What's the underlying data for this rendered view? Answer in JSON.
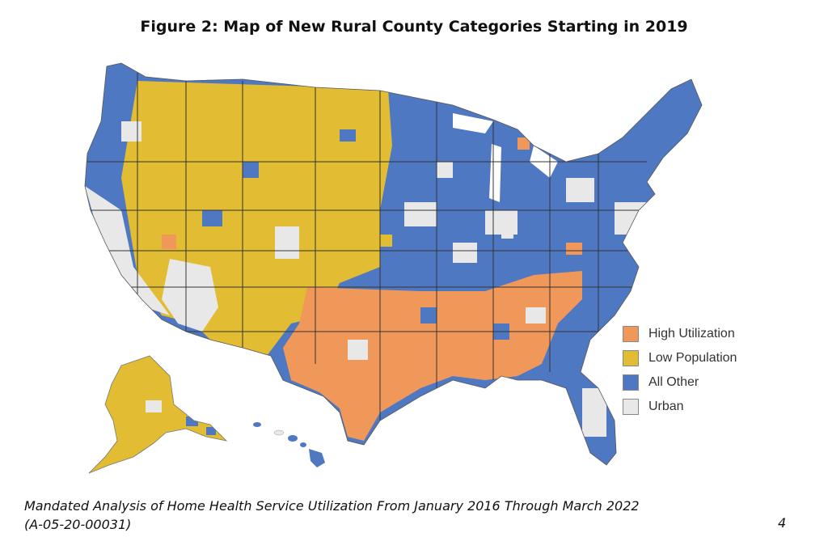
{
  "title": "Figure 2: Map of New Rural County Categories Starting in 2019",
  "legend": [
    {
      "label": "High Utilization",
      "color": "#F0975A"
    },
    {
      "label": "Low Population",
      "color": "#E2BC32"
    },
    {
      "label": "All Other",
      "color": "#4F78C2"
    },
    {
      "label": "Urban",
      "color": "#E8E8E8"
    }
  ],
  "footer": {
    "line1": "Mandated Analysis of Home Health Service Utilization From January 2016 Through March 2022",
    "line2": "(A-05-20-00031)",
    "page": "4"
  }
}
